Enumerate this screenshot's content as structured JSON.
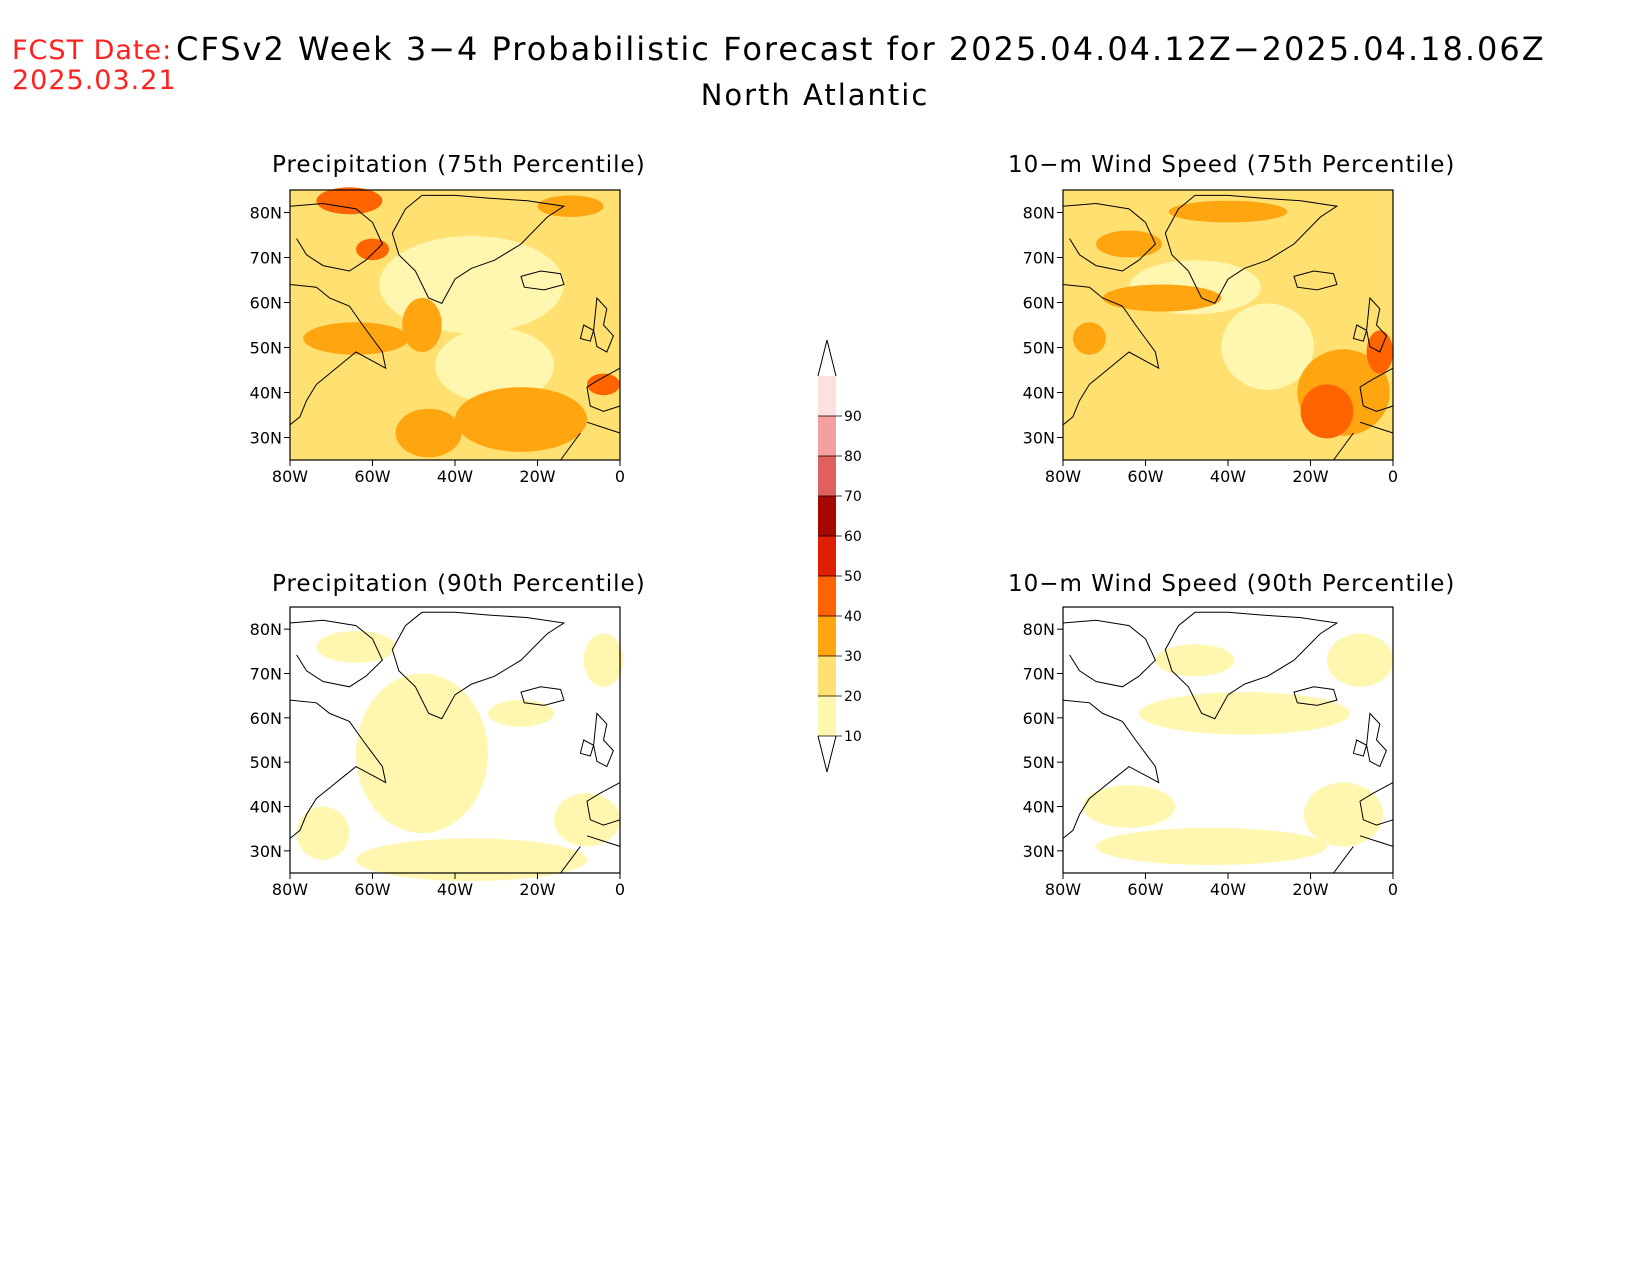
{
  "header": {
    "fcst_label": "FCST Date:",
    "fcst_date": "2025.03.21",
    "title": "CFSv2 Week 3−4 Probabilistic Forecast for 2025.04.04.12Z−2025.04.18.06Z",
    "region": "North Atlantic"
  },
  "axes": {
    "lat_ticks": [
      "80N",
      "70N",
      "60N",
      "50N",
      "40N",
      "30N"
    ],
    "lon_ticks": [
      "80W",
      "60W",
      "40W",
      "20W",
      "0"
    ]
  },
  "panels": [
    {
      "title": "Precipitation (75th Percentile)"
    },
    {
      "title": "10−m Wind Speed (75th Percentile)"
    },
    {
      "title": "Precipitation (90th Percentile)"
    },
    {
      "title": "10−m Wind Speed (90th Percentile)"
    }
  ],
  "colorbar": {
    "levels": [
      "10",
      "20",
      "30",
      "40",
      "50",
      "60",
      "70",
      "80",
      "90"
    ],
    "colors": [
      "#fff7b0",
      "#ffe070",
      "#ffa510",
      "#ff6400",
      "#e01e00",
      "#a50a00",
      "#e06060",
      "#f4a0a0",
      "#fde0e0"
    ]
  }
}
